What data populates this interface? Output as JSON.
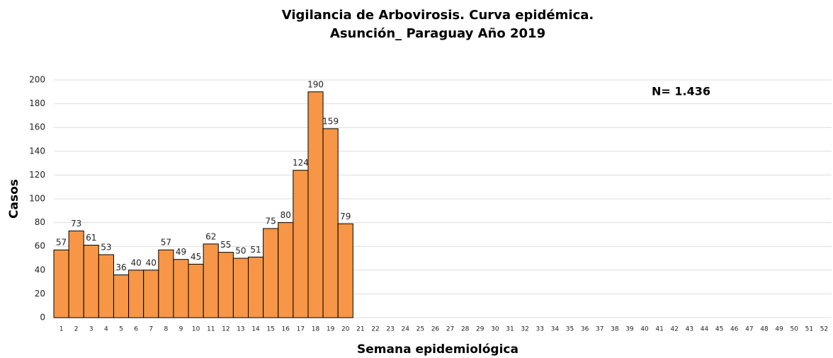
{
  "chart_data": {
    "type": "bar",
    "title": [
      "Vigilancia de Arbovirosis. Curva epidémica.",
      "Asunción_ Paraguay Año 2019"
    ],
    "annotation": "N= 1.436",
    "x_label": "Semana epidemiológica",
    "y_label": "Casos",
    "categories": [
      "1",
      "2",
      "3",
      "4",
      "5",
      "6",
      "7",
      "8",
      "9",
      "10",
      "11",
      "12",
      "13",
      "14",
      "15",
      "16",
      "17",
      "18",
      "19",
      "20",
      "21",
      "22",
      "23",
      "24",
      "25",
      "26",
      "27",
      "28",
      "29",
      "30",
      "31",
      "32",
      "33",
      "34",
      "35",
      "36",
      "37",
      "38",
      "39",
      "40",
      "41",
      "42",
      "43",
      "44",
      "45",
      "46",
      "47",
      "48",
      "49",
      "50",
      "51",
      "52"
    ],
    "values": [
      57,
      73,
      61,
      53,
      36,
      40,
      40,
      57,
      49,
      45,
      62,
      55,
      50,
      51,
      75,
      80,
      124,
      190,
      159,
      79,
      null,
      null,
      null,
      null,
      null,
      null,
      null,
      null,
      null,
      null,
      null,
      null,
      null,
      null,
      null,
      null,
      null,
      null,
      null,
      null,
      null,
      null,
      null,
      null,
      null,
      null,
      null,
      null,
      null,
      null,
      null,
      null
    ],
    "color": "#f79646",
    "ylim": [
      0,
      200
    ],
    "yticks": [
      0,
      20,
      40,
      60,
      80,
      100,
      120,
      140,
      160,
      180,
      200
    ],
    "grid": true
  }
}
